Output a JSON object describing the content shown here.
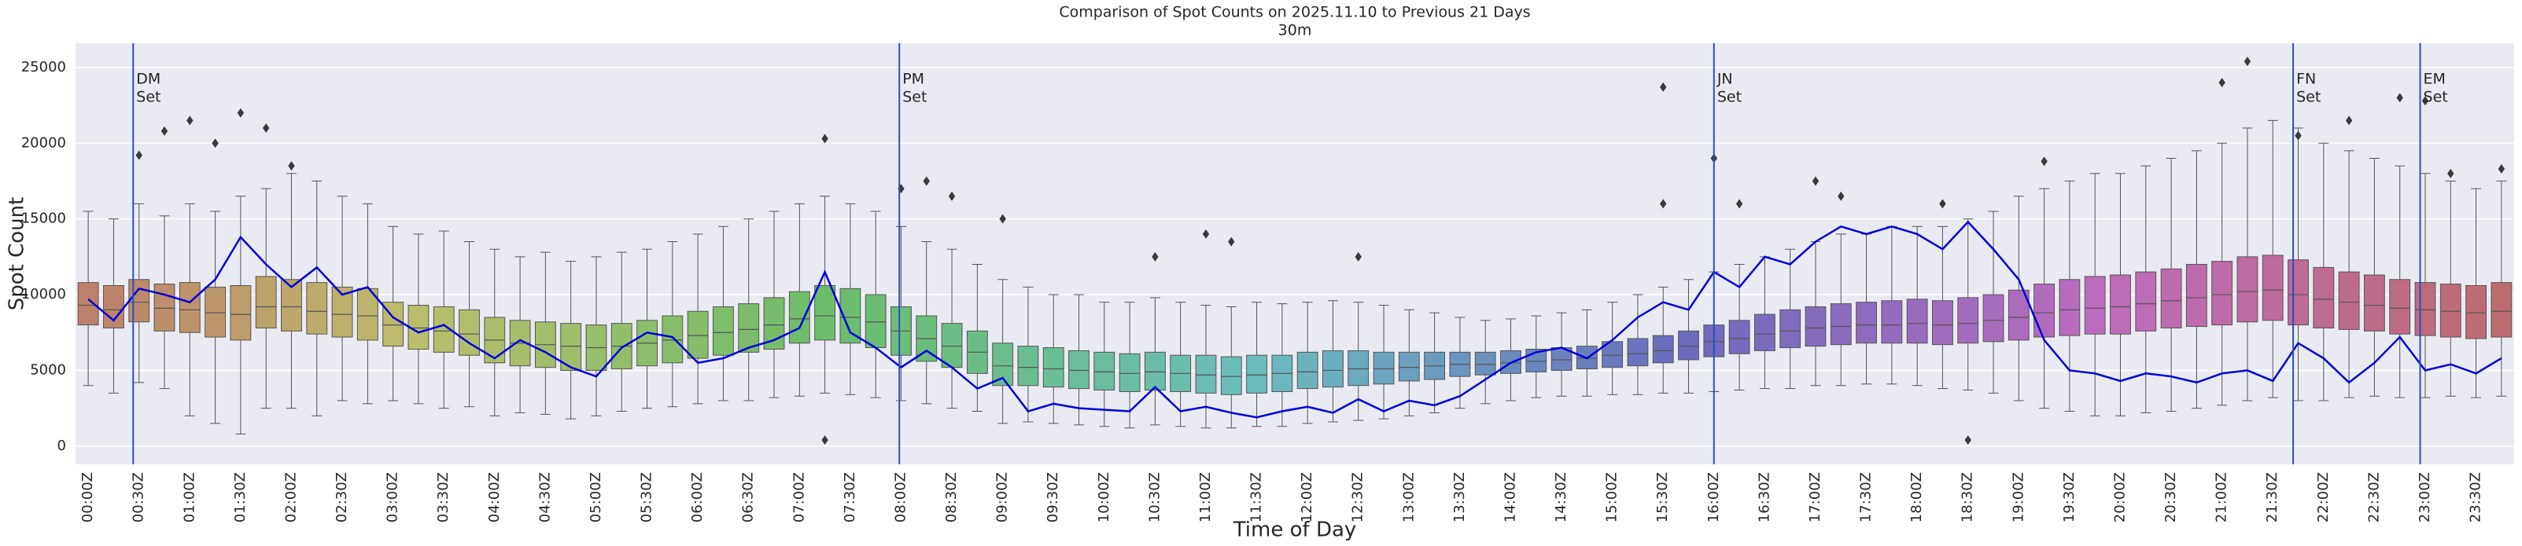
{
  "chart_data": {
    "type": "box",
    "title": "Comparison of Spot Counts on 2025.11.10 to Previous 21 Days",
    "subtitle": "30m",
    "x_label": "Time of Day",
    "y_label": "Spot Count",
    "ylim": [
      -1200,
      26600
    ],
    "yticks": [
      0,
      5000,
      10000,
      15000,
      20000,
      25000
    ],
    "grid": true,
    "palette": "husl",
    "categories": [
      "00:00Z",
      null,
      "00:30Z",
      null,
      "01:00Z",
      null,
      "01:30Z",
      null,
      "02:00Z",
      null,
      "02:30Z",
      null,
      "03:00Z",
      null,
      "03:30Z",
      null,
      "04:00Z",
      null,
      "04:30Z",
      null,
      "05:00Z",
      null,
      "05:30Z",
      null,
      "06:00Z",
      null,
      "06:30Z",
      null,
      "07:00Z",
      null,
      "07:30Z",
      null,
      "08:00Z",
      null,
      "08:30Z",
      null,
      "09:00Z",
      null,
      "09:30Z",
      null,
      "10:00Z",
      null,
      "10:30Z",
      null,
      "11:00Z",
      null,
      "11:30Z",
      null,
      "12:00Z",
      null,
      "12:30Z",
      null,
      "13:00Z",
      null,
      "13:30Z",
      null,
      "14:00Z",
      null,
      "14:30Z",
      null,
      "15:00Z",
      null,
      "15:30Z",
      null,
      "16:00Z",
      null,
      "16:30Z",
      null,
      "17:00Z",
      null,
      "17:30Z",
      null,
      "18:00Z",
      null,
      "18:30Z",
      null,
      "19:00Z",
      null,
      "19:30Z",
      null,
      "20:00Z",
      null,
      "20:30Z",
      null,
      "21:00Z",
      null,
      "21:30Z",
      null,
      "22:00Z",
      null,
      "22:30Z",
      null,
      "23:00Z",
      null,
      "23:30Z",
      null
    ],
    "boxes": [
      [
        4000,
        8000,
        9300,
        10800,
        15500
      ],
      [
        3500,
        7800,
        9000,
        10600,
        15000
      ],
      [
        4200,
        8200,
        9500,
        11000,
        16000
      ],
      [
        3800,
        7600,
        9100,
        10700,
        15200
      ],
      [
        2000,
        7500,
        9000,
        10800,
        16000
      ],
      [
        1500,
        7200,
        8800,
        10500,
        15500
      ],
      [
        800,
        7000,
        8700,
        10600,
        16500
      ],
      [
        2500,
        7800,
        9200,
        11200,
        17000
      ],
      [
        2500,
        7600,
        9200,
        11000,
        18000
      ],
      [
        2000,
        7400,
        8900,
        10800,
        17500
      ],
      [
        3000,
        7200,
        8700,
        10500,
        16500
      ],
      [
        2800,
        7000,
        8600,
        10400,
        16000
      ],
      [
        3000,
        6600,
        8000,
        9500,
        14500
      ],
      [
        2800,
        6400,
        7800,
        9300,
        14000
      ],
      [
        2500,
        6200,
        7600,
        9200,
        14200
      ],
      [
        2600,
        6000,
        7400,
        9000,
        13500
      ],
      [
        2000,
        5500,
        7000,
        8500,
        13000
      ],
      [
        2200,
        5300,
        6800,
        8300,
        12500
      ],
      [
        2100,
        5200,
        6700,
        8200,
        12800
      ],
      [
        1800,
        5000,
        6600,
        8100,
        12200
      ],
      [
        2000,
        5000,
        6500,
        8000,
        12500
      ],
      [
        2300,
        5100,
        6600,
        8100,
        12800
      ],
      [
        2500,
        5300,
        6800,
        8300,
        13000
      ],
      [
        2600,
        5500,
        7000,
        8600,
        13500
      ],
      [
        2800,
        5800,
        7300,
        8900,
        14000
      ],
      [
        3000,
        6000,
        7500,
        9200,
        14500
      ],
      [
        3000,
        6200,
        7700,
        9400,
        15000
      ],
      [
        3200,
        6400,
        8000,
        9800,
        15500
      ],
      [
        3300,
        6800,
        8400,
        10200,
        16000
      ],
      [
        3500,
        7000,
        8600,
        10600,
        16500
      ],
      [
        3400,
        6800,
        8500,
        10400,
        16000
      ],
      [
        3200,
        6500,
        8200,
        10000,
        15500
      ],
      [
        3000,
        6000,
        7600,
        9200,
        14500
      ],
      [
        2800,
        5600,
        7100,
        8600,
        13500
      ],
      [
        2500,
        5200,
        6600,
        8100,
        13000
      ],
      [
        2300,
        4800,
        6200,
        7600,
        12000
      ],
      [
        1500,
        4000,
        5300,
        6800,
        11000
      ],
      [
        1600,
        4000,
        5200,
        6600,
        10500
      ],
      [
        1500,
        3900,
        5100,
        6500,
        10000
      ],
      [
        1400,
        3800,
        5000,
        6300,
        10000
      ],
      [
        1300,
        3700,
        4900,
        6200,
        9500
      ],
      [
        1200,
        3600,
        4800,
        6100,
        9500
      ],
      [
        1400,
        3700,
        4900,
        6200,
        9800
      ],
      [
        1300,
        3600,
        4800,
        6000,
        9500
      ],
      [
        1200,
        3500,
        4700,
        6000,
        9300
      ],
      [
        1200,
        3400,
        4600,
        5900,
        9200
      ],
      [
        1300,
        3500,
        4700,
        6000,
        9500
      ],
      [
        1300,
        3600,
        4800,
        6000,
        9400
      ],
      [
        1500,
        3800,
        4900,
        6200,
        9500
      ],
      [
        1600,
        3900,
        5000,
        6300,
        9600
      ],
      [
        1700,
        4000,
        5100,
        6300,
        9500
      ],
      [
        1800,
        4100,
        5100,
        6200,
        9300
      ],
      [
        2000,
        4300,
        5200,
        6200,
        9000
      ],
      [
        2200,
        4400,
        5300,
        6200,
        8800
      ],
      [
        2500,
        4600,
        5400,
        6200,
        8500
      ],
      [
        2800,
        4700,
        5400,
        6200,
        8300
      ],
      [
        3000,
        4800,
        5500,
        6300,
        8400
      ],
      [
        3200,
        4900,
        5600,
        6400,
        8600
      ],
      [
        3300,
        5000,
        5700,
        6500,
        8800
      ],
      [
        3300,
        5100,
        5800,
        6600,
        9000
      ],
      [
        3400,
        5200,
        6000,
        6900,
        9500
      ],
      [
        3400,
        5300,
        6100,
        7100,
        10000
      ],
      [
        3500,
        5500,
        6300,
        7300,
        10500
      ],
      [
        3500,
        5700,
        6600,
        7600,
        11000
      ],
      [
        3600,
        5900,
        6900,
        8000,
        11500
      ],
      [
        3700,
        6100,
        7100,
        8300,
        12000
      ],
      [
        3800,
        6300,
        7400,
        8700,
        12500
      ],
      [
        3800,
        6500,
        7600,
        9000,
        13000
      ],
      [
        4000,
        6600,
        7800,
        9200,
        13500
      ],
      [
        4000,
        6700,
        7900,
        9400,
        14000
      ],
      [
        4100,
        6800,
        8000,
        9500,
        14000
      ],
      [
        4100,
        6800,
        8000,
        9600,
        14500
      ],
      [
        4000,
        6800,
        8100,
        9700,
        14500
      ],
      [
        3800,
        6700,
        8000,
        9600,
        14500
      ],
      [
        3700,
        6800,
        8100,
        9800,
        15000
      ],
      [
        3500,
        6900,
        8300,
        10000,
        15500
      ],
      [
        3000,
        7000,
        8500,
        10300,
        16500
      ],
      [
        2500,
        7200,
        8800,
        10700,
        17000
      ],
      [
        2300,
        7300,
        9000,
        11000,
        17500
      ],
      [
        2000,
        7400,
        9100,
        11200,
        18000
      ],
      [
        2000,
        7400,
        9200,
        11300,
        18000
      ],
      [
        2200,
        7600,
        9400,
        11500,
        18500
      ],
      [
        2300,
        7800,
        9600,
        11700,
        19000
      ],
      [
        2500,
        7900,
        9800,
        12000,
        19500
      ],
      [
        2700,
        8000,
        10000,
        12200,
        20000
      ],
      [
        3000,
        8200,
        10200,
        12500,
        21000
      ],
      [
        3200,
        8300,
        10300,
        12600,
        21500
      ],
      [
        3000,
        8000,
        10000,
        12300,
        21000
      ],
      [
        3000,
        7800,
        9700,
        11800,
        20000
      ],
      [
        3200,
        7700,
        9500,
        11500,
        19500
      ],
      [
        3300,
        7600,
        9300,
        11300,
        19000
      ],
      [
        3200,
        7400,
        9100,
        11000,
        18500
      ],
      [
        3200,
        7300,
        9000,
        10800,
        18000
      ],
      [
        3300,
        7200,
        8900,
        10700,
        17500
      ],
      [
        3200,
        7100,
        8800,
        10600,
        17000
      ],
      [
        3300,
        7200,
        8900,
        10800,
        17500
      ]
    ],
    "outliers": [
      [
        2,
        19200
      ],
      [
        3,
        20800
      ],
      [
        4,
        21500
      ],
      [
        5,
        20000
      ],
      [
        6,
        22000
      ],
      [
        7,
        21000
      ],
      [
        8,
        18500
      ],
      [
        29,
        20300
      ],
      [
        29,
        400
      ],
      [
        32,
        17000
      ],
      [
        33,
        17500
      ],
      [
        34,
        16500
      ],
      [
        36,
        15000
      ],
      [
        42,
        12500
      ],
      [
        44,
        14000
      ],
      [
        45,
        13500
      ],
      [
        50,
        12500
      ],
      [
        62,
        23700
      ],
      [
        62,
        16000
      ],
      [
        64,
        19000
      ],
      [
        65,
        16000
      ],
      [
        68,
        17500
      ],
      [
        69,
        16500
      ],
      [
        73,
        16000
      ],
      [
        74,
        400
      ],
      [
        77,
        18800
      ],
      [
        84,
        24000
      ],
      [
        85,
        25400
      ],
      [
        87,
        20500
      ],
      [
        89,
        21500
      ],
      [
        91,
        23000
      ],
      [
        92,
        22800
      ],
      [
        93,
        18000
      ],
      [
        95,
        18300
      ]
    ],
    "line": {
      "color": "#0000dd",
      "values": [
        9700,
        8300,
        10400,
        10000,
        9500,
        11000,
        13800,
        12000,
        10500,
        11800,
        10000,
        10500,
        8500,
        7500,
        8000,
        6800,
        5800,
        7000,
        6200,
        5200,
        4600,
        6500,
        7500,
        7200,
        5500,
        5800,
        6500,
        7000,
        7800,
        11500,
        7500,
        6500,
        5200,
        6300,
        5200,
        3800,
        4500,
        2300,
        2800,
        2500,
        2400,
        2300,
        3900,
        2300,
        2600,
        2200,
        1900,
        2300,
        2600,
        2200,
        3100,
        2300,
        3000,
        2700,
        3300,
        4400,
        5500,
        6200,
        6500,
        5800,
        7000,
        8500,
        9500,
        9000,
        11500,
        10500,
        12500,
        12000,
        13500,
        14500,
        14000,
        14500,
        14000,
        13000,
        14800,
        13000,
        11000,
        7000,
        5000,
        4800,
        4300,
        4800,
        4600,
        4200,
        4800,
        5000,
        4300,
        6800,
        5800,
        4200,
        5500,
        7200,
        5000,
        5400,
        4800,
        5800
      ]
    },
    "annotations": [
      {
        "x": 1.77,
        "lines": [
          "DM",
          "Set"
        ]
      },
      {
        "x": 31.93,
        "lines": [
          "PM",
          "Set"
        ]
      },
      {
        "x": 64,
        "lines": [
          "JN",
          "Set"
        ]
      },
      {
        "x": 86.8,
        "lines": [
          "FN",
          "Set"
        ]
      },
      {
        "x": 91.8,
        "lines": [
          "EM",
          "Set"
        ]
      }
    ],
    "annotation_color": "#2a4fc0"
  }
}
